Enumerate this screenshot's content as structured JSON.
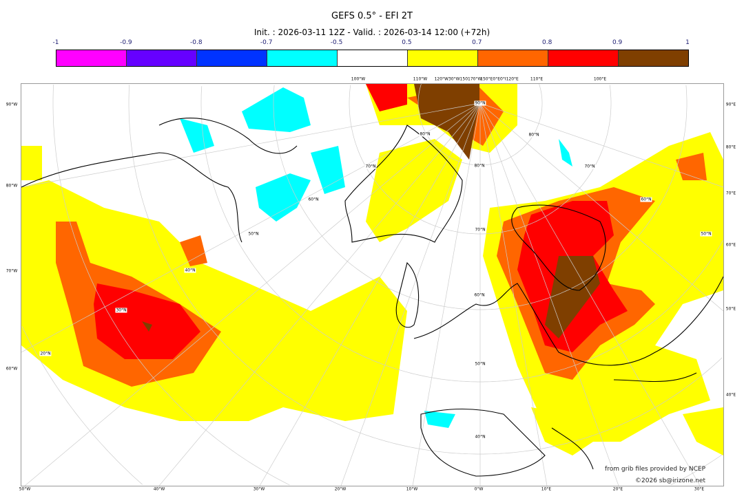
{
  "title": "GEFS 0.5° - EFI 2T",
  "subtitle": "Init. : 2026-03-11 12Z - Valid. : 2026-03-14 12:00 (+72h)",
  "colorbar": {
    "ticks": [
      "-1",
      "-0.9",
      "-0.8",
      "-0.7",
      "-0.5",
      "0.5",
      "0.7",
      "0.8",
      "0.9",
      "1"
    ],
    "colors": [
      "#ff00ff",
      "#6600ff",
      "#0033ff",
      "#00ffff",
      "#ffffff",
      "#ffff00",
      "#ff6600",
      "#ff0000",
      "#7f3f00"
    ]
  },
  "axes": {
    "left": [
      "90°W",
      "80°W",
      "70°W",
      "60°W"
    ],
    "right": [
      "90°E",
      "80°E",
      "70°E",
      "60°E",
      "50°E",
      "40°E"
    ],
    "bottom": [
      "50°W",
      "40°W",
      "30°W",
      "20°W",
      "10°W",
      "0°W",
      "10°E",
      "20°E",
      "30°E"
    ],
    "top": [
      "100°W",
      "110°W",
      "120°W30°W150170°W",
      "150°E0°E0°I120°E",
      "110°E",
      "100°E"
    ],
    "lat_labels": [
      "90°N",
      "80°N",
      "80°N",
      "80°N",
      "70°N",
      "70°N",
      "70°N",
      "60°N",
      "60°N",
      "60°N",
      "50°N",
      "50°N",
      "50°N",
      "40°N",
      "40°N",
      "30°N",
      "20°N"
    ]
  },
  "credits": {
    "source": "from grib files provided by NCEP",
    "copyright": "©2026 sb@irizone.net"
  }
}
